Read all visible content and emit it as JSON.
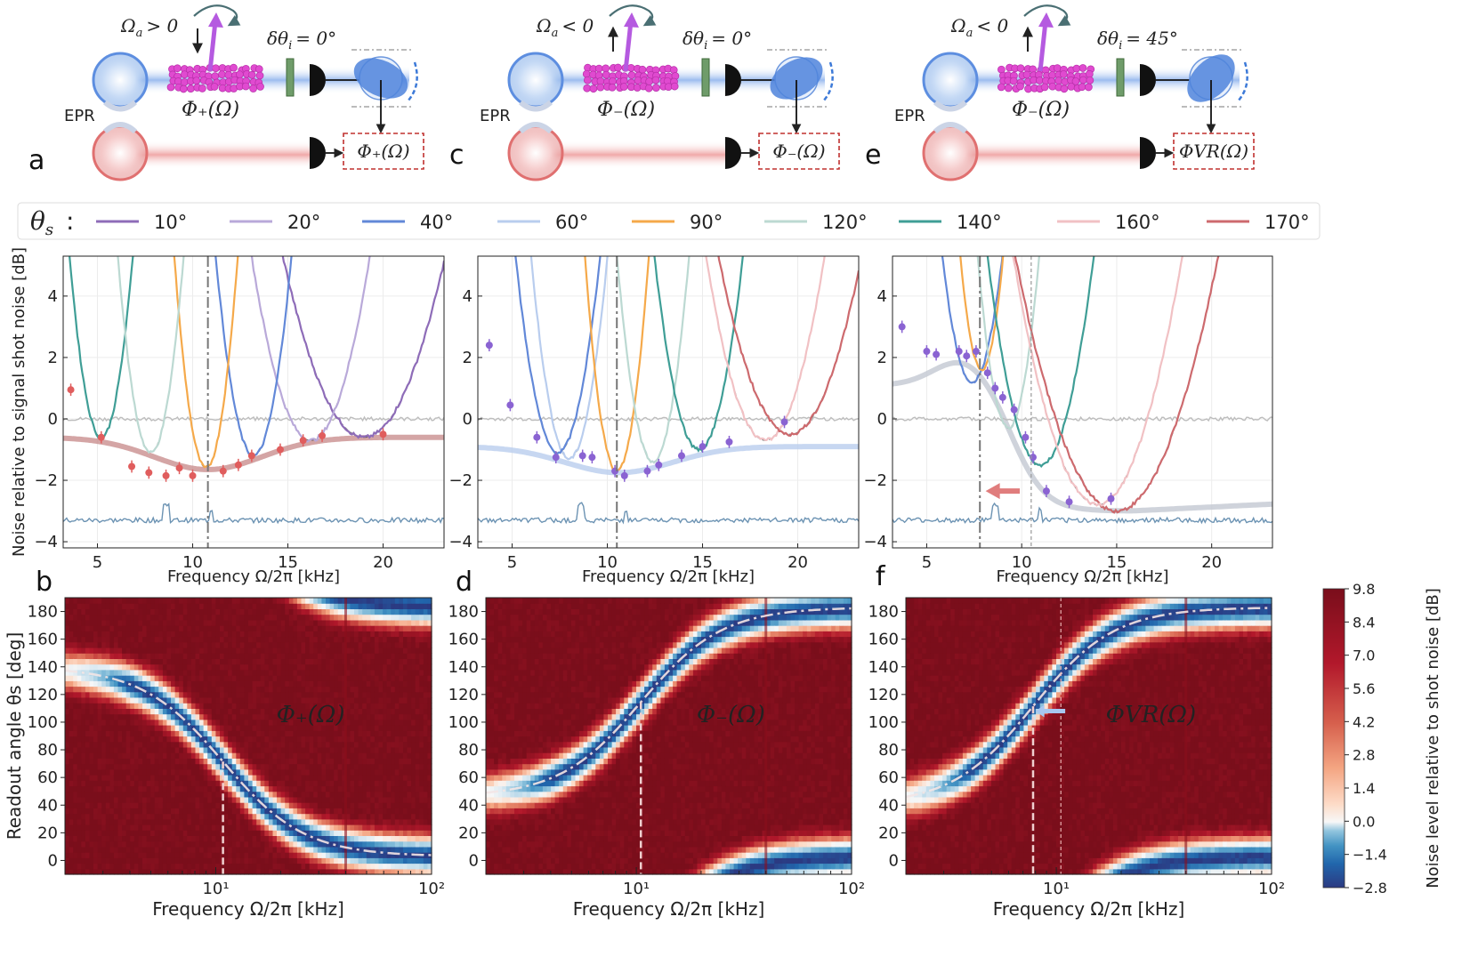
{
  "panel_letters": [
    "a",
    "b",
    "c",
    "d",
    "e",
    "f"
  ],
  "schematics": [
    {
      "letter": "a",
      "omega_a": "Ω",
      "omega_a_sub": "a",
      "omega_a_cond": "> 0",
      "phase_shift": "δθ",
      "phase_shift_sub": "i",
      "phase_shift_value": "= 0°",
      "atoms_label": "Φ₊(Ω)",
      "output_label": "Φ₊(Ω)",
      "epr": "EPR"
    },
    {
      "letter": "c",
      "omega_a": "Ω",
      "omega_a_sub": "a",
      "omega_a_cond": "< 0",
      "phase_shift": "δθ",
      "phase_shift_sub": "i",
      "phase_shift_value": "= 0°",
      "atoms_label": "Φ₋(Ω)",
      "output_label": "Φ₋(Ω)",
      "epr": "EPR"
    },
    {
      "letter": "e",
      "omega_a": "Ω",
      "omega_a_sub": "a",
      "omega_a_cond": "< 0",
      "phase_shift": "δθ",
      "phase_shift_sub": "i",
      "phase_shift_value": "= 45°",
      "atoms_label": "Φ₋(Ω)",
      "output_label": "ΦVR(Ω)",
      "epr": "EPR"
    }
  ],
  "legend": {
    "symbol": "θ",
    "symbol_sub": "s",
    "separator": ":",
    "entries": [
      {
        "label": "10°",
        "color": "#8e6cb8"
      },
      {
        "label": "20°",
        "color": "#b9a9d9"
      },
      {
        "label": "40°",
        "color": "#6288d8"
      },
      {
        "label": "60°",
        "color": "#b9cdee"
      },
      {
        "label": "90°",
        "color": "#f5a94a"
      },
      {
        "label": "120°",
        "color": "#bcd9d2"
      },
      {
        "label": "140°",
        "color": "#3f9e96"
      },
      {
        "label": "160°",
        "color": "#f1c1c4"
      },
      {
        "label": "170°",
        "color": "#cd6a6e"
      }
    ]
  },
  "colorbar": {
    "label": "Noise level relative to shot noise [dB]",
    "ticks": [
      "9.8",
      "8.4",
      "7.0",
      "5.6",
      "4.2",
      "2.8",
      "1.4",
      "0.0",
      "−1.4",
      "−2.8"
    ],
    "range": [
      -2.8,
      9.8
    ],
    "colors": [
      "#2b3a82",
      "#2166ac",
      "#4393c3",
      "#92c5de",
      "#d1e5f0",
      "#f7f7f7",
      "#fddbc7",
      "#f4a582",
      "#d6604d",
      "#b2182b",
      "#7a0e1b"
    ]
  },
  "chart_data": [
    {
      "type": "line",
      "panel": "b",
      "xlabel": "Frequency Ω/2π [kHz]",
      "ylabel": "Noise relative to signal shot noise [dB]",
      "xlim": [
        3.2,
        23.2
      ],
      "ylim": [
        -4.2,
        5.3
      ],
      "xticks": [
        5,
        10,
        15,
        20
      ],
      "yticks": [
        -4,
        -2,
        0,
        2,
        4
      ],
      "xtick_labels": [
        "5",
        "10",
        "15",
        "20"
      ],
      "ytick_labels": [
        "−4",
        "−2",
        "0",
        "2",
        "4"
      ],
      "vline": 10.8,
      "vline_style": "dashdot",
      "shot_noise_ref": 0,
      "squeezed_baseline": -3.3,
      "series": [
        {
          "name": "10°",
          "color": "#8e6cb8",
          "center": 19.0,
          "min": -0.6,
          "width": 3.6
        },
        {
          "name": "20°",
          "color": "#b9a9d9",
          "center": 16.2,
          "min": -0.7,
          "width": 2.6
        },
        {
          "name": "40°",
          "color": "#6288d8",
          "center": 13.2,
          "min": -1.2,
          "width": 1.6
        },
        {
          "name": "90°",
          "color": "#f5a94a",
          "center": 10.7,
          "min": -1.6,
          "width": 1.3
        },
        {
          "name": "140°",
          "color": "#3f9e96",
          "center": 5.2,
          "min": -0.6,
          "width": 1.4
        },
        {
          "name": "120°",
          "color": "#bcd9d2",
          "center": 7.8,
          "min": -1.1,
          "width": 1.4
        }
      ],
      "envelope": {
        "color": "#c98f8f",
        "center": 10.8,
        "min": -1.65,
        "floor": -0.6,
        "width": 4.0
      },
      "points": {
        "color": "#e05d5d",
        "x": [
          3.6,
          5.2,
          6.8,
          7.7,
          8.6,
          9.3,
          10.0,
          11.6,
          12.4,
          13.1,
          14.6,
          15.8,
          16.8,
          20.0
        ],
        "y": [
          0.95,
          -0.6,
          -1.55,
          -1.75,
          -1.85,
          -1.6,
          -1.85,
          -1.7,
          -1.5,
          -1.2,
          -1.0,
          -0.7,
          -0.55,
          -0.5
        ]
      }
    },
    {
      "type": "line",
      "panel": "d",
      "xlabel": "Frequency Ω/2π [kHz]",
      "ylabel": "",
      "xlim": [
        3.2,
        23.2
      ],
      "ylim": [
        -4.2,
        5.3
      ],
      "xticks": [
        5,
        10,
        15,
        20
      ],
      "yticks": [
        -4,
        -2,
        0,
        2,
        4
      ],
      "xtick_labels": [
        "5",
        "10",
        "15",
        "20"
      ],
      "ytick_labels": [
        "−4",
        "−2",
        "0",
        "2",
        "4"
      ],
      "vline": 10.5,
      "vline_style": "dashdot",
      "shot_noise_ref": 0,
      "squeezed_baseline": -3.3,
      "series": [
        {
          "name": "60°",
          "color": "#b9cdee",
          "center": 8.0,
          "min": -1.3,
          "width": 1.6
        },
        {
          "name": "40°",
          "color": "#6288d8",
          "center": 7.4,
          "min": -1.1,
          "width": 1.8
        },
        {
          "name": "90°",
          "color": "#f5a94a",
          "center": 10.5,
          "min": -1.7,
          "width": 1.3
        },
        {
          "name": "120°",
          "color": "#bcd9d2",
          "center": 12.4,
          "min": -1.4,
          "width": 1.5
        },
        {
          "name": "140°",
          "color": "#3f9e96",
          "center": 14.8,
          "min": -1.0,
          "width": 1.9
        },
        {
          "name": "160°",
          "color": "#f1c1c4",
          "center": 18.3,
          "min": -0.7,
          "width": 2.6
        },
        {
          "name": "170°",
          "color": "#cd6a6e",
          "center": 19.6,
          "min": -0.5,
          "width": 3.2
        }
      ],
      "envelope": {
        "color": "#b9cdee",
        "center": 10.6,
        "min": -1.75,
        "floor": -0.9,
        "width": 4.0
      },
      "points": {
        "color": "#8a63d2",
        "x": [
          3.8,
          4.9,
          6.3,
          7.3,
          8.7,
          9.2,
          10.4,
          10.9,
          12.1,
          12.7,
          13.9,
          15.0,
          16.4,
          19.3
        ],
        "y": [
          2.4,
          0.45,
          -0.6,
          -1.25,
          -1.2,
          -1.25,
          -1.7,
          -1.85,
          -1.7,
          -1.5,
          -1.2,
          -0.9,
          -0.75,
          -0.1
        ]
      }
    },
    {
      "type": "line",
      "panel": "f",
      "xlabel": "Frequency Ω/2π [kHz]",
      "ylabel": "",
      "xlim": [
        3.2,
        23.2
      ],
      "ylim": [
        -4.2,
        5.3
      ],
      "xticks": [
        5,
        10,
        15,
        20
      ],
      "yticks": [
        -4,
        -2,
        0,
        2,
        4
      ],
      "xtick_labels": [
        "5",
        "10",
        "15",
        "20"
      ],
      "ytick_labels": [
        "−4",
        "−2",
        "0",
        "2",
        "4"
      ],
      "vline": 7.8,
      "vline2": 10.5,
      "vline_style": "dashdot",
      "shot_noise_ref": 0,
      "squeezed_baseline": -3.3,
      "arrow": {
        "from": 9.9,
        "to": 8.1,
        "y": -2.35,
        "color": "#e07d7d"
      },
      "series": [
        {
          "name": "40°",
          "color": "#6288d8",
          "center": 7.4,
          "min": 1.2,
          "width": 1.6
        },
        {
          "name": "90°",
          "color": "#f5a94a",
          "center": 7.9,
          "min": 1.6,
          "width": 1.2
        },
        {
          "name": "120°",
          "color": "#bcd9d2",
          "center": 9.3,
          "min": -0.3,
          "width": 1.4
        },
        {
          "name": "140°",
          "color": "#3f9e96",
          "center": 11.0,
          "min": -1.5,
          "width": 2.2
        },
        {
          "name": "170°",
          "color": "#cd6a6e",
          "center": 15.0,
          "min": -3.0,
          "width": 3.8
        },
        {
          "name": "160°",
          "color": "#f1c1c4",
          "center": 14.0,
          "min": -2.8,
          "width": 3.2
        }
      ],
      "envelope": {
        "color": "#c3c8d2",
        "mode": "vr"
      },
      "points": {
        "color": "#8a63d2",
        "x": [
          3.7,
          5.0,
          5.5,
          6.7,
          7.1,
          7.6,
          8.2,
          8.6,
          9.0,
          9.6,
          10.2,
          10.6,
          11.3,
          12.5,
          14.7
        ],
        "y": [
          3.0,
          2.2,
          2.1,
          2.2,
          2.05,
          2.2,
          1.5,
          1.0,
          0.7,
          0.3,
          -0.6,
          -1.25,
          -2.35,
          -2.7,
          -2.6
        ]
      }
    },
    {
      "type": "heatmap",
      "panel": "b",
      "xlabel": "Frequency Ω/2π [kHz]",
      "ylabel": "Readout angle θs [deg]",
      "xscale": "log",
      "xlim": [
        2,
        100
      ],
      "ylim": [
        -10,
        190
      ],
      "xtick_labels": [
        "10¹",
        "10²"
      ],
      "xtick_values": [
        10,
        100
      ],
      "yticks": [
        0,
        20,
        40,
        60,
        80,
        100,
        120,
        140,
        160,
        180
      ],
      "ytick_labels": [
        "0",
        "20",
        "40",
        "60",
        "80",
        "100",
        "120",
        "140",
        "160",
        "180"
      ],
      "annotation": "Φ₊(Ω)",
      "trend": "decreasing",
      "angle_low": 140,
      "angle_high": 3,
      "center": 10.8,
      "vline": 10.8
    },
    {
      "type": "heatmap",
      "panel": "d",
      "xlabel": "Frequency Ω/2π [kHz]",
      "ylabel": "",
      "xscale": "log",
      "xlim": [
        2,
        100
      ],
      "ylim": [
        -10,
        190
      ],
      "xtick_labels": [
        "10¹",
        "10²"
      ],
      "xtick_values": [
        10,
        100
      ],
      "yticks": [
        0,
        20,
        40,
        60,
        80,
        100,
        120,
        140,
        160,
        180
      ],
      "ytick_labels": [
        "0",
        "20",
        "40",
        "60",
        "80",
        "100",
        "120",
        "140",
        "160",
        "180"
      ],
      "annotation": "Φ₋(Ω)",
      "trend": "increasing",
      "angle_low": 46,
      "angle_high": 183,
      "center": 10.5,
      "vline": 10.5
    },
    {
      "type": "heatmap",
      "panel": "f",
      "xlabel": "Frequency Ω/2π [kHz]",
      "ylabel": "",
      "xscale": "log",
      "xlim": [
        2,
        100
      ],
      "ylim": [
        -10,
        190
      ],
      "xtick_labels": [
        "10¹",
        "10²"
      ],
      "xtick_values": [
        10,
        100
      ],
      "yticks": [
        0,
        20,
        40,
        60,
        80,
        100,
        120,
        140,
        160,
        180
      ],
      "ytick_labels": [
        "0",
        "20",
        "40",
        "60",
        "80",
        "100",
        "120",
        "140",
        "160",
        "180"
      ],
      "annotation": "ΦVR(Ω)",
      "trend": "increasing",
      "angle_low": 40,
      "angle_high": 183,
      "center": 7.8,
      "vline": 7.8,
      "vline2": 10.5,
      "arrow_angle": 108
    }
  ]
}
